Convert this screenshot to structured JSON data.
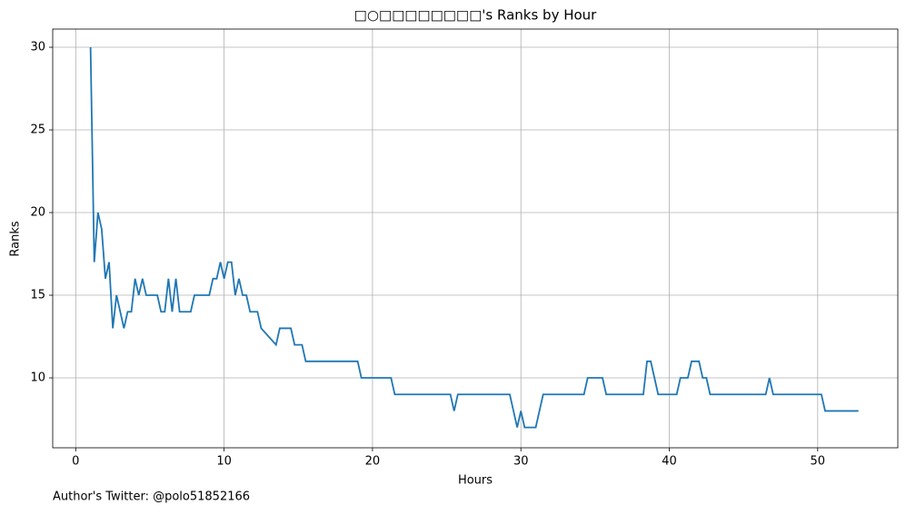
{
  "chart_data": {
    "type": "line",
    "title": "□○□□□□□□□□'s Ranks by Hour",
    "xlabel": "Hours",
    "ylabel": "Ranks",
    "annotation": "Author's Twitter: @polo51852166",
    "x": [
      1.0,
      1.25,
      1.5,
      1.75,
      2.0,
      2.25,
      2.5,
      2.75,
      3.0,
      3.25,
      3.5,
      3.75,
      4.0,
      4.25,
      4.5,
      4.75,
      5.5,
      5.75,
      6.0,
      6.25,
      6.5,
      6.75,
      7.0,
      7.75,
      8.0,
      9.0,
      9.25,
      9.5,
      9.75,
      10.0,
      10.25,
      10.5,
      10.75,
      11.0,
      11.25,
      11.5,
      11.75,
      12.25,
      12.5,
      13.5,
      13.75,
      14.5,
      14.75,
      15.25,
      15.5,
      19.0,
      19.25,
      21.25,
      21.5,
      25.25,
      25.5,
      25.75,
      29.25,
      29.75,
      30.0,
      30.25,
      31.0,
      31.5,
      34.25,
      34.5,
      35.5,
      35.75,
      38.25,
      38.5,
      38.75,
      39.25,
      40.5,
      40.75,
      41.25,
      41.5,
      42.0,
      42.25,
      42.5,
      42.75,
      46.5,
      46.75,
      47.0,
      50.25,
      50.5,
      52.75
    ],
    "series": [
      {
        "name": "Ranks",
        "color": "#1f77b4",
        "values": [
          30,
          17,
          20,
          19,
          16,
          17,
          13,
          15,
          14,
          13,
          14,
          14,
          16,
          15,
          16,
          15,
          15,
          14,
          14,
          16,
          14,
          16,
          14,
          14,
          15,
          15,
          16,
          16,
          17,
          16,
          17,
          17,
          15,
          16,
          15,
          15,
          14,
          14,
          13,
          12,
          13,
          13,
          12,
          12,
          11,
          11,
          10,
          10,
          9,
          9,
          8,
          9,
          9,
          7,
          8,
          7,
          7,
          9,
          9,
          10,
          10,
          9,
          9,
          11,
          11,
          9,
          9,
          10,
          10,
          11,
          11,
          10,
          10,
          9,
          9,
          10,
          9,
          9,
          8,
          8
        ]
      }
    ],
    "xlim": [
      -1.55,
      55.4
    ],
    "ylim": [
      5.77,
      31.1
    ],
    "xticks": [
      0,
      10,
      20,
      30,
      40,
      50
    ],
    "yticks": [
      10,
      15,
      20,
      25,
      30
    ],
    "grid": true
  }
}
